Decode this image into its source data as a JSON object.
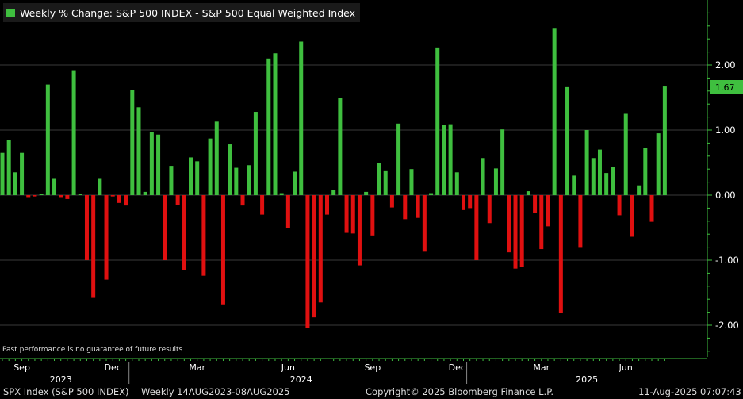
{
  "legend": {
    "label": "Weekly % Change: S&P 500 INDEX - S&P 500 Equal Weighted Index",
    "color": "#3fbf3f"
  },
  "disclaimer": "Past performance is no guarantee of future results",
  "footer": {
    "ticker": "SPX Index (S&P 500 INDEX)",
    "period": "Weekly 14AUG2023-08AUG2025",
    "copyright": "Copyright© 2025 Bloomberg Finance L.P.",
    "timestamp": "11-Aug-2025 07:07:43"
  },
  "last_value_label": "1.67",
  "colors": {
    "positive": "#3fbf3f",
    "negative": "#e01010",
    "axis": "#3fbf3f",
    "grid": "#3a3a3a"
  },
  "chart_data": {
    "type": "bar",
    "title": "Weekly % Change: S&P 500 INDEX - S&P 500 Equal Weighted Index",
    "ylim": [
      -2.4,
      2.95
    ],
    "yticks": [
      2.0,
      1.0,
      0.0,
      -1.0,
      -2.0
    ],
    "ytick_labels": [
      "2.00",
      "1.00",
      "0.00",
      "-1.00",
      "-2.00"
    ],
    "month_labels": [
      "Sep",
      "Dec",
      "Mar",
      "Jun",
      "Sep",
      "Dec",
      "Mar",
      "Jun"
    ],
    "month_week_index": [
      3,
      17,
      30,
      44,
      57,
      70,
      83,
      96
    ],
    "year_labels": [
      "2023",
      "2024",
      "2025"
    ],
    "year_week_index": [
      9,
      46,
      90
    ],
    "year_boundary_week_index": [
      20,
      72
    ],
    "values": [
      0.65,
      0.85,
      0.35,
      0.65,
      -0.03,
      -0.02,
      0.02,
      1.7,
      0.25,
      -0.03,
      -0.06,
      1.92,
      0.02,
      -1.0,
      -1.58,
      0.25,
      -1.3,
      -0.02,
      -0.12,
      -0.16,
      1.62,
      1.35,
      0.05,
      0.97,
      0.93,
      -1.0,
      0.45,
      -0.15,
      -1.15,
      0.58,
      0.52,
      -1.24,
      0.87,
      1.13,
      -1.68,
      0.78,
      0.42,
      -0.16,
      0.46,
      1.28,
      -0.3,
      2.1,
      2.18,
      0.03,
      -0.5,
      0.36,
      2.36,
      -2.04,
      -1.88,
      -1.65,
      -0.3,
      0.08,
      1.5,
      -0.58,
      -0.59,
      -1.08,
      0.05,
      -0.62,
      0.49,
      0.38,
      -0.19,
      1.1,
      -0.37,
      0.4,
      -0.35,
      -0.87,
      0.03,
      2.27,
      1.08,
      1.09,
      0.35,
      -0.23,
      -0.2,
      -1.0,
      0.57,
      -0.43,
      0.41,
      1.01,
      -0.88,
      -1.13,
      -1.1,
      0.06,
      -0.27,
      -0.83,
      -0.48,
      2.57,
      -1.81,
      1.66,
      0.3,
      -0.81,
      1.0,
      0.57,
      0.7,
      0.34,
      0.43,
      -0.31,
      1.25,
      -0.64,
      0.15,
      0.73,
      -0.41,
      0.95,
      1.67
    ]
  }
}
